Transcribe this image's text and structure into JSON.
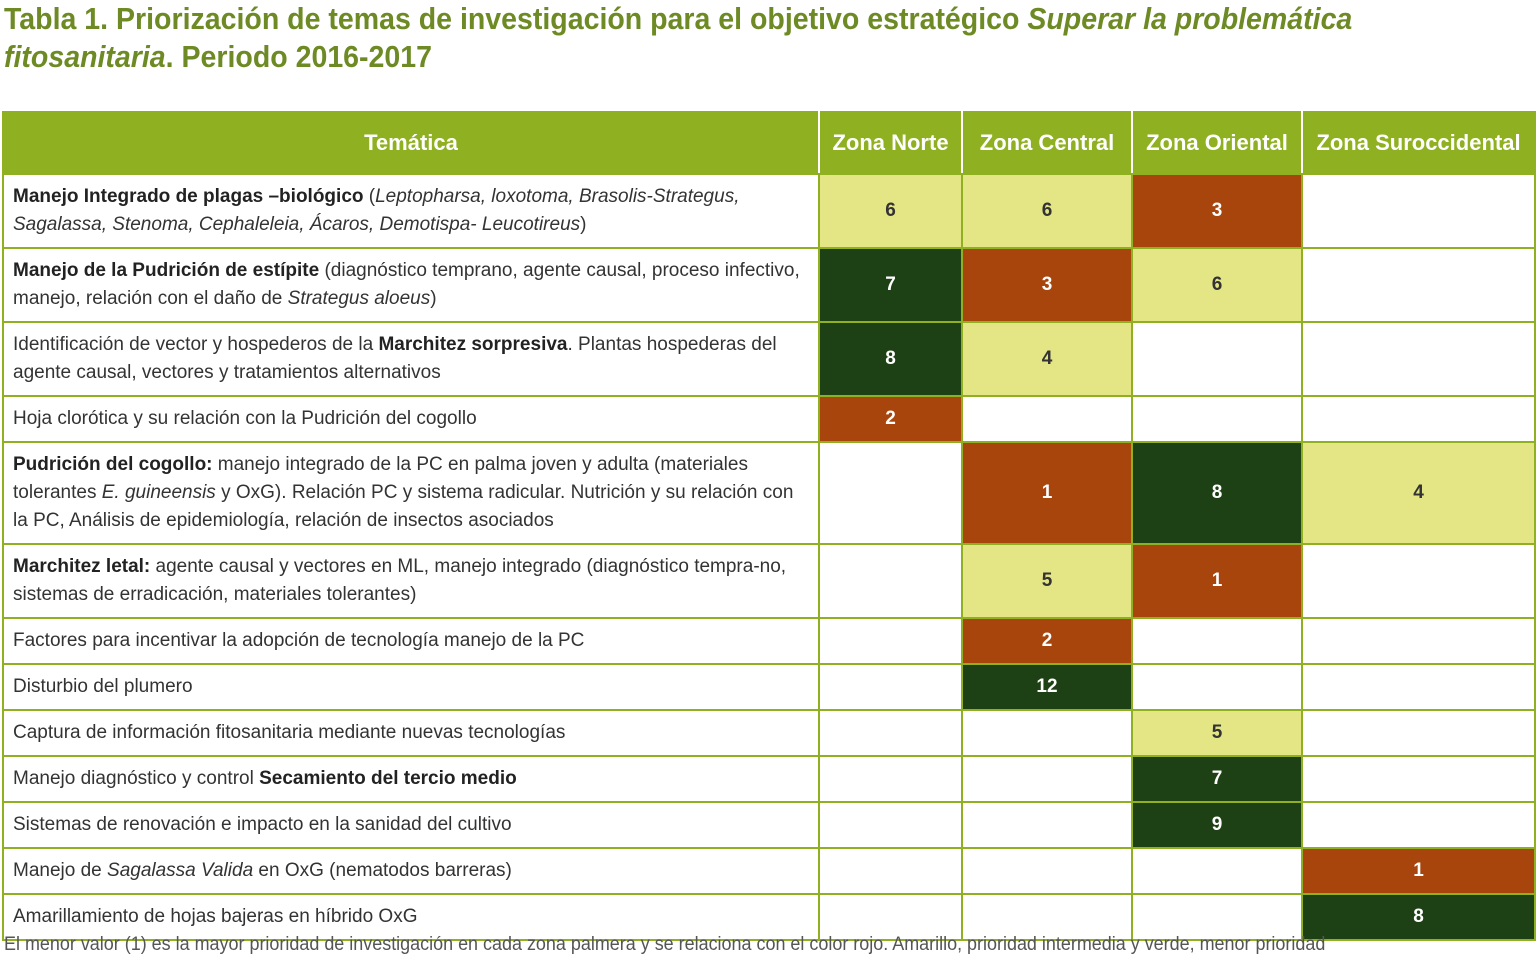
{
  "title": {
    "line1": "Tabla 1. Priorización de temas de investigación para el objetivo estratégico ",
    "line1_italic": "Superar la problemática",
    "line2_italic": "fitosanitaria",
    "line2": ". Periodo 2016-2017"
  },
  "headers": [
    "Temática",
    "Zona Norte",
    "Zona Central",
    "Zona Oriental",
    "Zona Suroccidental"
  ],
  "colors": {
    "header_bg": "#8fb021",
    "title": "#6d8a24",
    "high_priority_red": "#a7450d",
    "intermediate_yellow": "#e4e585",
    "low_priority_green": "#1e4015"
  },
  "rows": [
    {
      "topic": [
        {
          "t": "Manejo Integrado de plagas –biológico",
          "s": "b"
        },
        {
          "t": " ("
        },
        {
          "t": "Leptopharsa, loxotoma, Brasolis-Strategus, Sagalassa, Stenoma, Cephaleleia, Ácaros, Demotispa- Leucotireus",
          "s": "i"
        },
        {
          "t": ")"
        }
      ],
      "cells": [
        {
          "v": "6",
          "c": "mid"
        },
        {
          "v": "6",
          "c": "mid"
        },
        {
          "v": "3",
          "c": "low"
        },
        {
          "v": "",
          "c": "empty"
        }
      ]
    },
    {
      "topic": [
        {
          "t": "Manejo de la Pudrición de estípite",
          "s": "b"
        },
        {
          "t": " (diagnóstico temprano, agente causal, proceso infectivo, manejo, relación con el daño de "
        },
        {
          "t": "Strategus aloeus",
          "s": "i"
        },
        {
          "t": ")"
        }
      ],
      "cells": [
        {
          "v": "7",
          "c": "high"
        },
        {
          "v": "3",
          "c": "low"
        },
        {
          "v": "6",
          "c": "mid"
        },
        {
          "v": "",
          "c": "empty"
        }
      ]
    },
    {
      "topic": [
        {
          "t": "Identificación de vector y hospederos de la "
        },
        {
          "t": "Marchitez sorpresiva",
          "s": "b"
        },
        {
          "t": ". Plantas hospederas del agente causal, vectores y tratamientos alternativos"
        }
      ],
      "cells": [
        {
          "v": "8",
          "c": "high"
        },
        {
          "v": "4",
          "c": "mid"
        },
        {
          "v": "",
          "c": "empty"
        },
        {
          "v": "",
          "c": "empty"
        }
      ]
    },
    {
      "topic": [
        {
          "t": "Hoja clorótica y su relación con la Pudrición del cogollo"
        }
      ],
      "cells": [
        {
          "v": "2",
          "c": "low"
        },
        {
          "v": "",
          "c": "empty"
        },
        {
          "v": "",
          "c": "empty"
        },
        {
          "v": "",
          "c": "empty"
        }
      ]
    },
    {
      "topic": [
        {
          "t": "Pudrición del cogollo:",
          "s": "b"
        },
        {
          "t": " manejo integrado de la PC en palma joven y adulta (materiales tolerantes "
        },
        {
          "t": "E. guineensis",
          "s": "i"
        },
        {
          "t": " y OxG). Relación PC y sistema radicular. Nutrición y su relación con la PC, Análisis de epidemiología, relación de insectos asociados"
        }
      ],
      "cells": [
        {
          "v": "",
          "c": "empty"
        },
        {
          "v": "1",
          "c": "low"
        },
        {
          "v": "8",
          "c": "high"
        },
        {
          "v": "4",
          "c": "mid"
        }
      ]
    },
    {
      "topic": [
        {
          "t": "Marchitez letal:",
          "s": "b"
        },
        {
          "t": " agente causal y vectores en ML, manejo integrado (diagnóstico tempra-no, sistemas de erradicación, materiales tolerantes)"
        }
      ],
      "cells": [
        {
          "v": "",
          "c": "empty"
        },
        {
          "v": "5",
          "c": "mid"
        },
        {
          "v": "1",
          "c": "low"
        },
        {
          "v": "",
          "c": "empty"
        }
      ]
    },
    {
      "topic": [
        {
          "t": "Factores para incentivar la adopción de tecnología manejo de la PC"
        }
      ],
      "cells": [
        {
          "v": "",
          "c": "empty"
        },
        {
          "v": "2",
          "c": "low"
        },
        {
          "v": "",
          "c": "empty"
        },
        {
          "v": "",
          "c": "empty"
        }
      ]
    },
    {
      "topic": [
        {
          "t": "Disturbio del plumero"
        }
      ],
      "cells": [
        {
          "v": "",
          "c": "empty"
        },
        {
          "v": "12",
          "c": "high"
        },
        {
          "v": "",
          "c": "empty"
        },
        {
          "v": "",
          "c": "empty"
        }
      ]
    },
    {
      "topic": [
        {
          "t": "Captura de información fitosanitaria mediante nuevas tecnologías"
        }
      ],
      "cells": [
        {
          "v": "",
          "c": "empty"
        },
        {
          "v": "",
          "c": "empty"
        },
        {
          "v": "5",
          "c": "mid"
        },
        {
          "v": "",
          "c": "empty"
        }
      ]
    },
    {
      "topic": [
        {
          "t": "Manejo diagnóstico y control "
        },
        {
          "t": "Secamiento del tercio medio",
          "s": "b"
        }
      ],
      "cells": [
        {
          "v": "",
          "c": "empty"
        },
        {
          "v": "",
          "c": "empty"
        },
        {
          "v": "7",
          "c": "high"
        },
        {
          "v": "",
          "c": "empty"
        }
      ]
    },
    {
      "topic": [
        {
          "t": "Sistemas de renovación e impacto en la sanidad del cultivo"
        }
      ],
      "cells": [
        {
          "v": "",
          "c": "empty"
        },
        {
          "v": "",
          "c": "empty"
        },
        {
          "v": "9",
          "c": "high"
        },
        {
          "v": "",
          "c": "empty"
        }
      ]
    },
    {
      "topic": [
        {
          "t": "Manejo de "
        },
        {
          "t": "Sagalassa Valida",
          "s": "i"
        },
        {
          "t": " en OxG (nematodos barreras)"
        }
      ],
      "cells": [
        {
          "v": "",
          "c": "empty"
        },
        {
          "v": "",
          "c": "empty"
        },
        {
          "v": "",
          "c": "empty"
        },
        {
          "v": "1",
          "c": "low"
        }
      ]
    },
    {
      "topic": [
        {
          "t": "Amarillamiento de hojas bajeras en híbrido OxG"
        }
      ],
      "cells": [
        {
          "v": "",
          "c": "empty"
        },
        {
          "v": "",
          "c": "empty"
        },
        {
          "v": "",
          "c": "empty"
        },
        {
          "v": "8",
          "c": "high"
        }
      ]
    }
  ],
  "footnote": "El menor valor (1) es la mayor prioridad de investigación en cada zona palmera y se relaciona con el color rojo. Amarillo, prioridad intermedia y verde, menor prioridad"
}
